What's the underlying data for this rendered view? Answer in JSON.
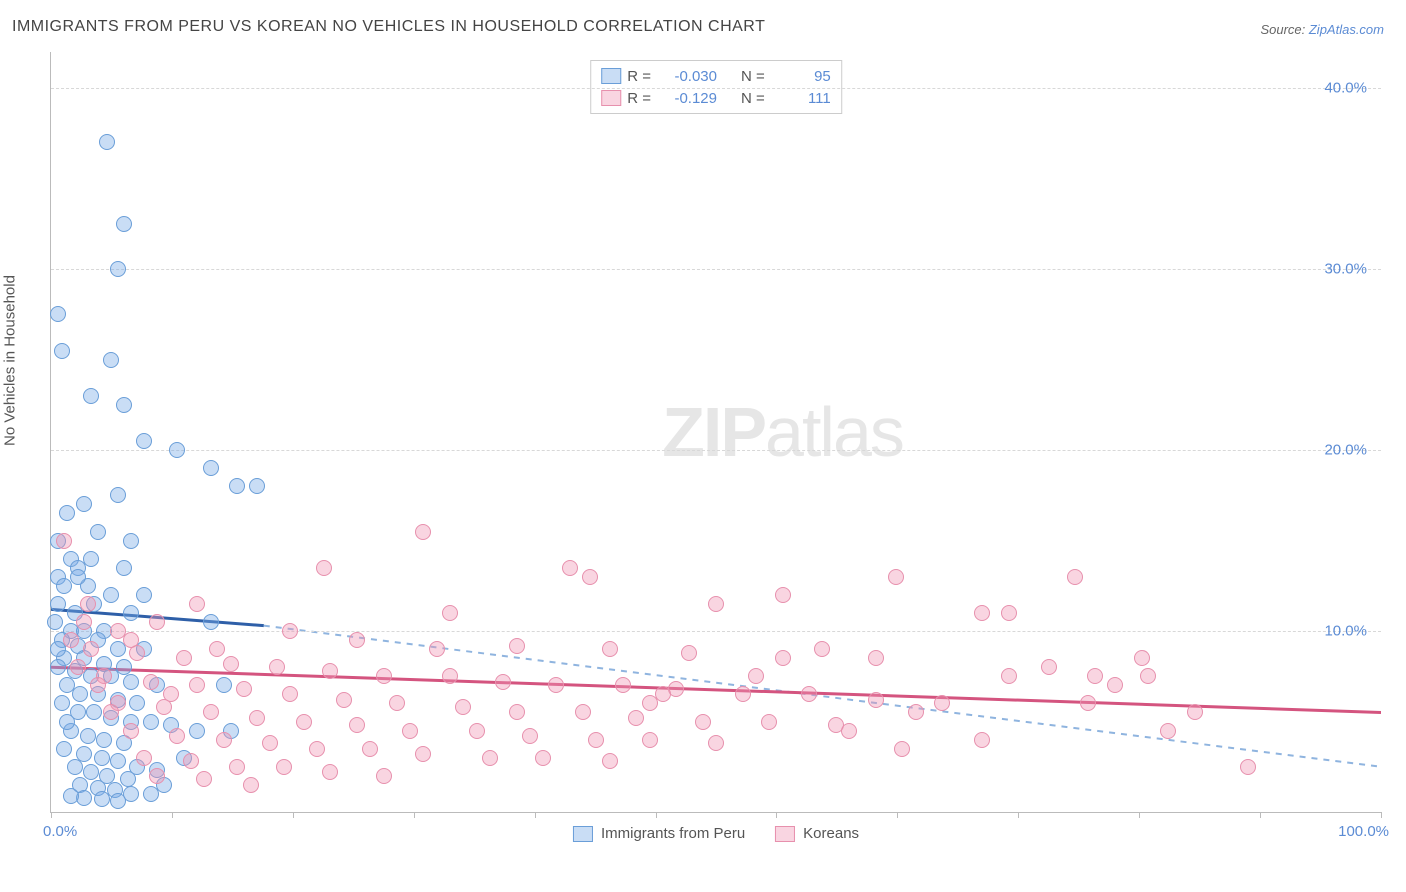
{
  "title": "IMMIGRANTS FROM PERU VS KOREAN NO VEHICLES IN HOUSEHOLD CORRELATION CHART",
  "source_prefix": "Source: ",
  "source_link": "ZipAtlas.com",
  "yaxis_title": "No Vehicles in Household",
  "watermark_bold": "ZIP",
  "watermark_light": "atlas",
  "chart": {
    "type": "scatter",
    "xlim": [
      0,
      100
    ],
    "ylim": [
      0,
      42
    ],
    "background_color": "#ffffff",
    "grid_color": "#d8d8d8",
    "yticks": [
      10,
      20,
      30,
      40
    ],
    "ytick_labels": [
      "10.0%",
      "20.0%",
      "30.0%",
      "40.0%"
    ],
    "xtick_positions": [
      0,
      9.1,
      18.2,
      27.3,
      36.4,
      45.5,
      54.5,
      63.6,
      72.7,
      81.8,
      90.9,
      100
    ],
    "xtick_labels_left": "0.0%",
    "xtick_labels_right": "100.0%",
    "series": [
      {
        "name": "Immigrants from Peru",
        "legend_label": "Immigrants from Peru",
        "fill_color": "rgba(120,170,230,0.4)",
        "stroke_color": "#6a9ed8",
        "trend_solid_color": "#2e5fa8",
        "trend_dash_color": "#8fb4df",
        "R_label": "R =",
        "R_value": "-0.030",
        "N_label": "N =",
        "N_value": "95",
        "trend_start_y": 11.2,
        "trend_solid_end_x": 16,
        "trend_solid_end_y": 10.3,
        "trend_dash_end_x": 100,
        "trend_dash_end_y": 2.5,
        "points": [
          [
            0.5,
            27.5
          ],
          [
            4.2,
            37.0
          ],
          [
            5.5,
            32.5
          ],
          [
            5.0,
            30.0
          ],
          [
            0.8,
            25.5
          ],
          [
            4.5,
            25.0
          ],
          [
            3.0,
            23.0
          ],
          [
            5.5,
            22.5
          ],
          [
            7.0,
            20.5
          ],
          [
            9.5,
            20.0
          ],
          [
            12.0,
            19.0
          ],
          [
            14.0,
            18.0
          ],
          [
            15.5,
            18.0
          ],
          [
            5.0,
            17.5
          ],
          [
            2.5,
            17.0
          ],
          [
            1.2,
            16.5
          ],
          [
            0.5,
            15.0
          ],
          [
            3.5,
            15.5
          ],
          [
            6.0,
            15.0
          ],
          [
            3.0,
            14.0
          ],
          [
            1.5,
            14.0
          ],
          [
            0.5,
            13.0
          ],
          [
            2.0,
            13.5
          ],
          [
            5.5,
            13.5
          ],
          [
            1.0,
            12.5
          ],
          [
            2.8,
            12.5
          ],
          [
            4.5,
            12.0
          ],
          [
            0.5,
            11.5
          ],
          [
            1.8,
            11.0
          ],
          [
            3.2,
            11.5
          ],
          [
            6.0,
            11.0
          ],
          [
            12.0,
            10.5
          ],
          [
            0.3,
            10.5
          ],
          [
            1.5,
            10.0
          ],
          [
            2.5,
            10.0
          ],
          [
            4.0,
            10.0
          ],
          [
            0.8,
            9.5
          ],
          [
            2.0,
            9.2
          ],
          [
            3.5,
            9.5
          ],
          [
            5.0,
            9.0
          ],
          [
            7.0,
            9.0
          ],
          [
            1.0,
            8.5
          ],
          [
            2.5,
            8.5
          ],
          [
            4.0,
            8.2
          ],
          [
            5.5,
            8.0
          ],
          [
            0.5,
            8.0
          ],
          [
            1.8,
            7.8
          ],
          [
            3.0,
            7.5
          ],
          [
            4.5,
            7.5
          ],
          [
            6.0,
            7.2
          ],
          [
            8.0,
            7.0
          ],
          [
            13.0,
            7.0
          ],
          [
            1.2,
            7.0
          ],
          [
            2.2,
            6.5
          ],
          [
            3.5,
            6.5
          ],
          [
            5.0,
            6.2
          ],
          [
            6.5,
            6.0
          ],
          [
            0.8,
            6.0
          ],
          [
            2.0,
            5.5
          ],
          [
            3.2,
            5.5
          ],
          [
            4.5,
            5.2
          ],
          [
            6.0,
            5.0
          ],
          [
            7.5,
            5.0
          ],
          [
            9.0,
            4.8
          ],
          [
            11.0,
            4.5
          ],
          [
            13.5,
            4.5
          ],
          [
            1.5,
            4.5
          ],
          [
            2.8,
            4.2
          ],
          [
            4.0,
            4.0
          ],
          [
            5.5,
            3.8
          ],
          [
            1.0,
            3.5
          ],
          [
            2.5,
            3.2
          ],
          [
            3.8,
            3.0
          ],
          [
            5.0,
            2.8
          ],
          [
            6.5,
            2.5
          ],
          [
            8.0,
            2.3
          ],
          [
            1.8,
            2.5
          ],
          [
            3.0,
            2.2
          ],
          [
            4.2,
            2.0
          ],
          [
            5.8,
            1.8
          ],
          [
            2.2,
            1.5
          ],
          [
            3.5,
            1.3
          ],
          [
            4.8,
            1.2
          ],
          [
            6.0,
            1.0
          ],
          [
            7.5,
            1.0
          ],
          [
            2.5,
            0.8
          ],
          [
            3.8,
            0.7
          ],
          [
            5.0,
            0.6
          ],
          [
            1.5,
            0.9
          ],
          [
            2.0,
            13.0
          ],
          [
            0.5,
            9.0
          ],
          [
            1.2,
            5.0
          ],
          [
            8.5,
            1.5
          ],
          [
            10.0,
            3.0
          ],
          [
            7.0,
            12.0
          ]
        ]
      },
      {
        "name": "Koreans",
        "legend_label": "Koreans",
        "fill_color": "rgba(240,150,180,0.4)",
        "stroke_color": "#e790ad",
        "trend_solid_color": "#d4547f",
        "trend_dash_color": "#d4547f",
        "R_label": "R =",
        "R_value": "-0.129",
        "N_label": "N =",
        "N_value": "111",
        "trend_start_y": 8.0,
        "trend_solid_end_x": 100,
        "trend_solid_end_y": 5.5,
        "trend_dash_end_x": 100,
        "trend_dash_end_y": 5.5,
        "points": [
          [
            1.0,
            15.0
          ],
          [
            28.0,
            15.5
          ],
          [
            39.0,
            13.5
          ],
          [
            40.5,
            13.0
          ],
          [
            20.5,
            13.5
          ],
          [
            63.5,
            13.0
          ],
          [
            55.0,
            12.0
          ],
          [
            77.0,
            13.0
          ],
          [
            50.0,
            11.5
          ],
          [
            70.0,
            11.0
          ],
          [
            11.0,
            11.5
          ],
          [
            2.5,
            10.5
          ],
          [
            5.0,
            10.0
          ],
          [
            8.0,
            10.5
          ],
          [
            18.0,
            10.0
          ],
          [
            23.0,
            9.5
          ],
          [
            29.0,
            9.0
          ],
          [
            35.0,
            9.2
          ],
          [
            42.0,
            9.0
          ],
          [
            48.0,
            8.8
          ],
          [
            55.0,
            8.5
          ],
          [
            62.0,
            8.5
          ],
          [
            3.0,
            9.0
          ],
          [
            6.5,
            8.8
          ],
          [
            10.0,
            8.5
          ],
          [
            13.5,
            8.2
          ],
          [
            17.0,
            8.0
          ],
          [
            21.0,
            7.8
          ],
          [
            25.0,
            7.5
          ],
          [
            30.0,
            7.5
          ],
          [
            34.0,
            7.2
          ],
          [
            38.0,
            7.0
          ],
          [
            43.0,
            7.0
          ],
          [
            47.0,
            6.8
          ],
          [
            52.0,
            6.5
          ],
          [
            57.0,
            6.5
          ],
          [
            62.0,
            6.2
          ],
          [
            67.0,
            6.0
          ],
          [
            4.0,
            7.5
          ],
          [
            7.5,
            7.2
          ],
          [
            11.0,
            7.0
          ],
          [
            14.5,
            6.8
          ],
          [
            18.0,
            6.5
          ],
          [
            22.0,
            6.2
          ],
          [
            26.0,
            6.0
          ],
          [
            31.0,
            5.8
          ],
          [
            35.0,
            5.5
          ],
          [
            40.0,
            5.5
          ],
          [
            44.0,
            5.2
          ],
          [
            49.0,
            5.0
          ],
          [
            54.0,
            5.0
          ],
          [
            59.0,
            4.8
          ],
          [
            5.0,
            6.0
          ],
          [
            8.5,
            5.8
          ],
          [
            12.0,
            5.5
          ],
          [
            15.5,
            5.2
          ],
          [
            19.0,
            5.0
          ],
          [
            23.0,
            4.8
          ],
          [
            27.0,
            4.5
          ],
          [
            32.0,
            4.5
          ],
          [
            36.0,
            4.2
          ],
          [
            41.0,
            4.0
          ],
          [
            45.0,
            4.0
          ],
          [
            50.0,
            3.8
          ],
          [
            6.0,
            4.5
          ],
          [
            9.5,
            4.2
          ],
          [
            13.0,
            4.0
          ],
          [
            16.5,
            3.8
          ],
          [
            20.0,
            3.5
          ],
          [
            24.0,
            3.5
          ],
          [
            28.0,
            3.2
          ],
          [
            33.0,
            3.0
          ],
          [
            37.0,
            3.0
          ],
          [
            42.0,
            2.8
          ],
          [
            7.0,
            3.0
          ],
          [
            10.5,
            2.8
          ],
          [
            14.0,
            2.5
          ],
          [
            17.5,
            2.5
          ],
          [
            21.0,
            2.2
          ],
          [
            25.0,
            2.0
          ],
          [
            8.0,
            2.0
          ],
          [
            11.5,
            1.8
          ],
          [
            15.0,
            1.5
          ],
          [
            45.0,
            6.0
          ],
          [
            53.0,
            7.5
          ],
          [
            60.0,
            4.5
          ],
          [
            65.0,
            5.5
          ],
          [
            70.0,
            4.0
          ],
          [
            72.0,
            7.5
          ],
          [
            75.0,
            8.0
          ],
          [
            78.0,
            6.0
          ],
          [
            80.0,
            7.0
          ],
          [
            82.0,
            8.5
          ],
          [
            84.0,
            4.5
          ],
          [
            86.0,
            5.5
          ],
          [
            72.0,
            11.0
          ],
          [
            30.0,
            11.0
          ],
          [
            46.0,
            6.5
          ],
          [
            58.0,
            9.0
          ],
          [
            64.0,
            3.5
          ],
          [
            90.0,
            2.5
          ],
          [
            2.0,
            8.0
          ],
          [
            3.5,
            7.0
          ],
          [
            4.5,
            5.5
          ],
          [
            1.5,
            9.5
          ],
          [
            2.8,
            11.5
          ],
          [
            6.0,
            9.5
          ],
          [
            9.0,
            6.5
          ],
          [
            12.5,
            9.0
          ],
          [
            78.5,
            7.5
          ],
          [
            82.5,
            7.5
          ]
        ]
      }
    ]
  }
}
